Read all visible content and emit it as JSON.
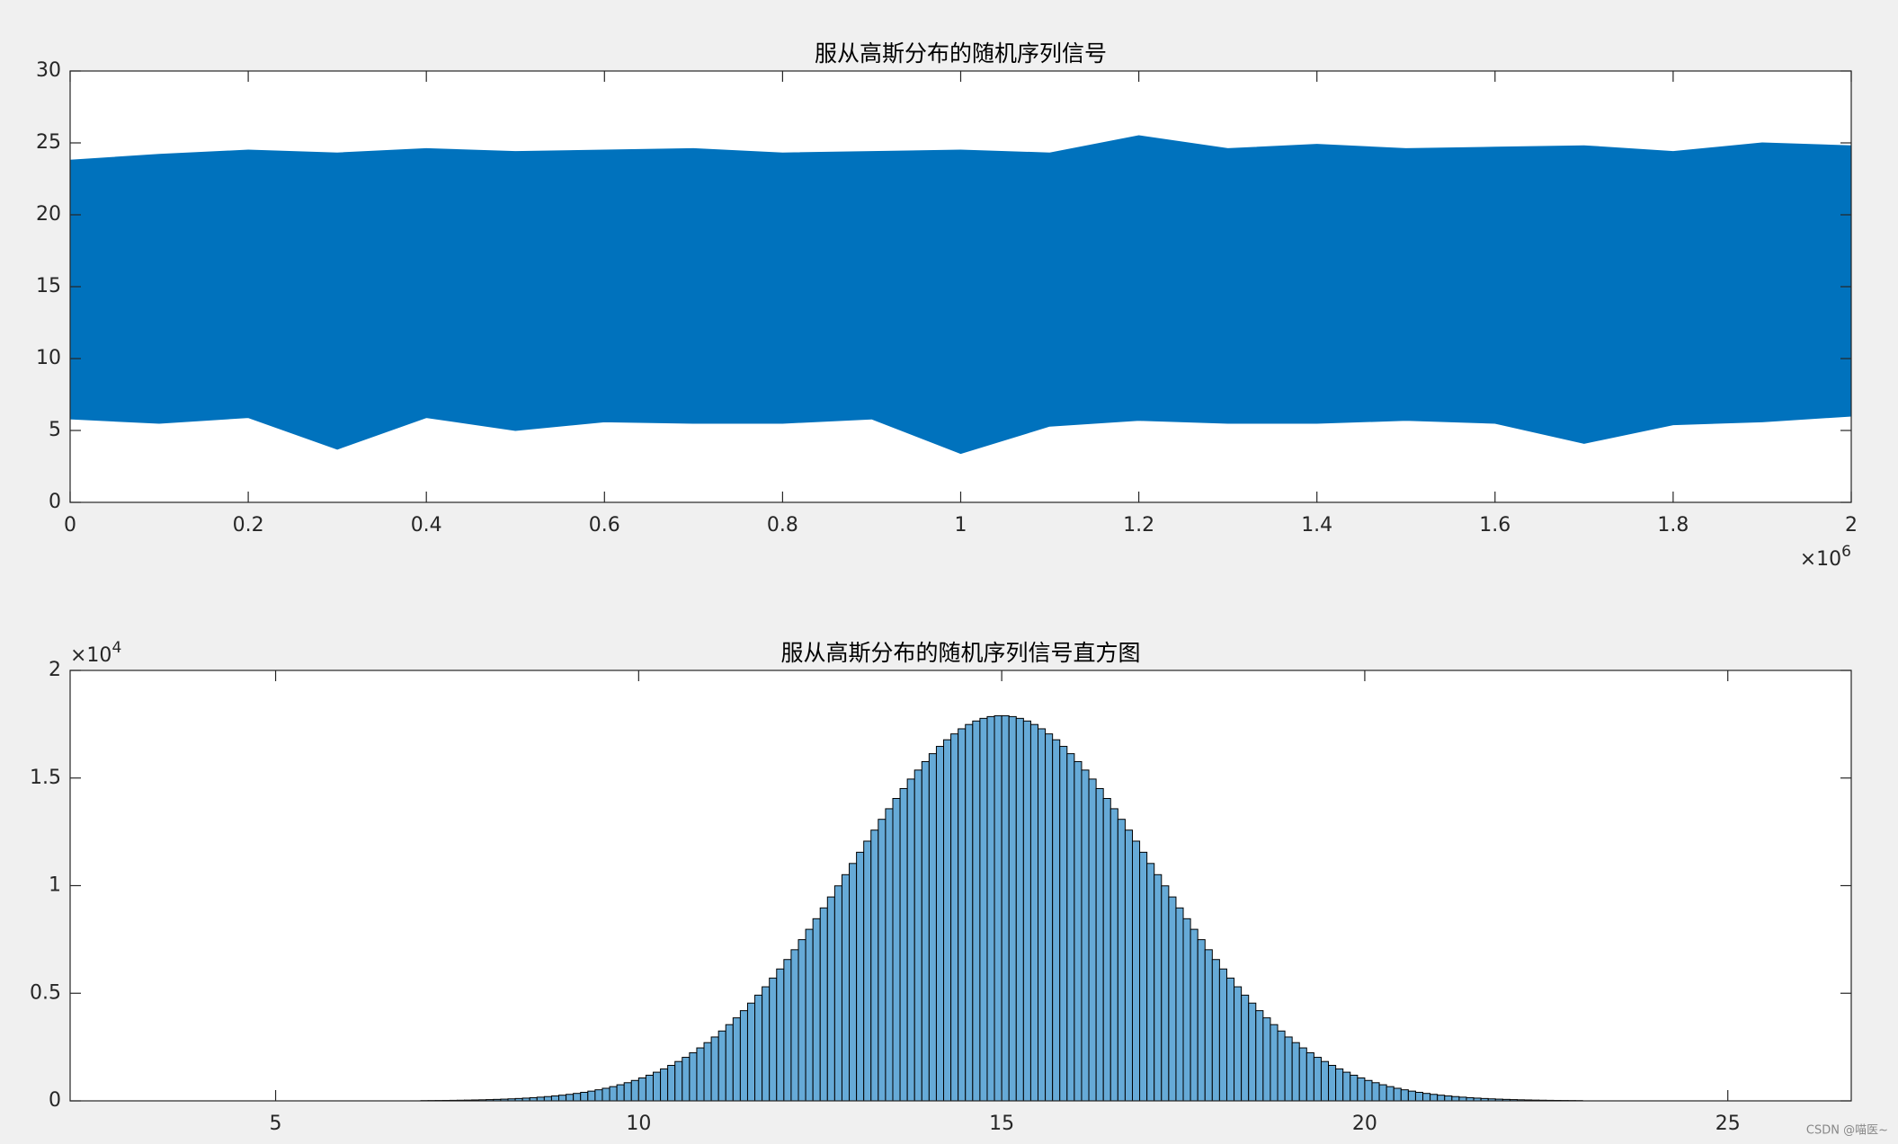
{
  "chart_data": [
    {
      "type": "band",
      "title": "服从高斯分布的随机序列信号",
      "color": "#0072BD",
      "x": [
        0,
        100000,
        200000,
        300000,
        400000,
        500000,
        600000,
        700000,
        800000,
        900000,
        1000000,
        1100000,
        1200000,
        1300000,
        1400000,
        1500000,
        1600000,
        1700000,
        1800000,
        1900000,
        2000000
      ],
      "upper": [
        23.8,
        24.2,
        24.5,
        24.3,
        24.6,
        24.4,
        24.5,
        24.6,
        24.3,
        24.4,
        24.5,
        24.3,
        25.5,
        24.6,
        24.9,
        24.6,
        24.7,
        24.8,
        24.4,
        25.0,
        24.8
      ],
      "lower": [
        5.8,
        5.5,
        5.9,
        3.7,
        5.9,
        5.0,
        5.6,
        5.5,
        5.5,
        5.8,
        3.4,
        5.3,
        5.7,
        5.5,
        5.5,
        5.7,
        5.5,
        4.1,
        5.4,
        5.6,
        6.0
      ],
      "xlim": [
        0,
        2000000
      ],
      "xticks": [
        0,
        {
          "value": 200000,
          "label": "0.2"
        },
        {
          "value": 400000,
          "label": "0.4"
        },
        {
          "value": 600000,
          "label": "0.6"
        },
        {
          "value": 800000,
          "label": "0.8"
        },
        {
          "value": 1000000,
          "label": "1"
        },
        {
          "value": 1200000,
          "label": "1.2"
        },
        {
          "value": 1400000,
          "label": "1.4"
        },
        {
          "value": 1600000,
          "label": "1.6"
        },
        {
          "value": 1800000,
          "label": "1.8"
        },
        {
          "value": 2000000,
          "label": "2"
        }
      ],
      "x_exponent": "×10",
      "x_exponent_power": "6",
      "ylim": [
        0,
        30
      ],
      "yticks": [
        0,
        5,
        10,
        15,
        20,
        25,
        30
      ]
    },
    {
      "type": "histogram",
      "title": "服从高斯分布的随机序列信号直方图",
      "color": "#66AAD7",
      "edge_color": "#000000",
      "bins": [
        7,
        7.1,
        7.2,
        7.3,
        7.4,
        7.5,
        7.6,
        7.7,
        7.8,
        7.9,
        8,
        8.1,
        8.2,
        8.3,
        8.4,
        8.5,
        8.6,
        8.7,
        8.8,
        8.9,
        9,
        9.1,
        9.2,
        9.3,
        9.4,
        9.5,
        9.6,
        9.7,
        9.8,
        9.9,
        10,
        10.1,
        10.2,
        10.3,
        10.4,
        10.5,
        10.6,
        10.7,
        10.8,
        10.9,
        11,
        11.1,
        11.2,
        11.3,
        11.4,
        11.5,
        11.6,
        11.7,
        11.8,
        11.9,
        12,
        12.1,
        12.2,
        12.3,
        12.4,
        12.5,
        12.6,
        12.7,
        12.8,
        12.9,
        13,
        13.1,
        13.2,
        13.3,
        13.4,
        13.5,
        13.6,
        13.7,
        13.8,
        13.9,
        14,
        14.1,
        14.2,
        14.3,
        14.4,
        14.5,
        14.6,
        14.7,
        14.8,
        14.9,
        15,
        15.1,
        15.2,
        15.3,
        15.4,
        15.5,
        15.6,
        15.7,
        15.8,
        15.9,
        16,
        16.1,
        16.2,
        16.3,
        16.4,
        16.5,
        16.6,
        16.7,
        16.8,
        16.9,
        17,
        17.1,
        17.2,
        17.3,
        17.4,
        17.5,
        17.6,
        17.7,
        17.8,
        17.9,
        18,
        18.1,
        18.2,
        18.3,
        18.4,
        18.5,
        18.6,
        18.7,
        18.8,
        18.9,
        19,
        19.1,
        19.2,
        19.3,
        19.4,
        19.5,
        19.6,
        19.7,
        19.8,
        19.9,
        20,
        20.1,
        20.2,
        20.3,
        20.4,
        20.5,
        20.6,
        20.7,
        20.8,
        20.9,
        21,
        21.1,
        21.2,
        21.3,
        21.4,
        21.5,
        21.6,
        21.7,
        21.8,
        21.9,
        22,
        22.1,
        22.2,
        22.3,
        22.4,
        22.5,
        22.6,
        22.7,
        22.8,
        22.9,
        23
      ],
      "values": [
        12,
        15,
        18,
        21,
        25,
        30,
        35,
        42,
        49,
        58,
        69,
        80,
        94,
        110,
        128,
        148,
        172,
        199,
        229,
        264,
        303,
        347,
        397,
        453,
        515,
        585,
        662,
        748,
        844,
        949,
        1065,
        1192,
        1332,
        1484,
        1649,
        1829,
        2023,
        2235,
        2461,
        2706,
        2967,
        3246,
        3542,
        3857,
        4191,
        4542,
        4912,
        5300,
        5706,
        6128,
        6567,
        7022,
        7490,
        7971,
        8463,
        8965,
        9474,
        9990,
        10510,
        11031,
        11551,
        12068,
        12580,
        13082,
        13573,
        14050,
        14511,
        14952,
        15370,
        15764,
        16132,
        16470,
        16777,
        17050,
        17287,
        17487,
        17649,
        17772,
        17854,
        17895,
        17895,
        17854,
        17772,
        17649,
        17487,
        17287,
        17050,
        16777,
        16470,
        16132,
        15764,
        15370,
        14952,
        14511,
        14050,
        13573,
        13082,
        12580,
        12068,
        11551,
        11031,
        10510,
        9990,
        9474,
        8965,
        8463,
        7971,
        7490,
        7022,
        6567,
        6128,
        5706,
        5300,
        4912,
        4542,
        4191,
        3857,
        3542,
        3246,
        2967,
        2706,
        2461,
        2235,
        2023,
        1829,
        1649,
        1484,
        1332,
        1192,
        1065,
        949,
        844,
        748,
        662,
        585,
        515,
        453,
        397,
        347,
        303,
        264,
        229,
        199,
        172,
        148,
        128,
        110,
        94,
        80,
        69,
        58,
        49,
        42,
        35,
        30,
        25,
        21,
        18,
        15,
        12
      ],
      "xlim": [
        2.17,
        26.7
      ],
      "xticks": [
        5,
        10,
        15,
        20,
        25
      ],
      "ylim": [
        0,
        20000
      ],
      "yticks": [
        0,
        {
          "value": 5000,
          "label": "0.5"
        },
        {
          "value": 10000,
          "label": "1"
        },
        {
          "value": 15000,
          "label": "1.5"
        },
        {
          "value": 20000,
          "label": "2"
        }
      ],
      "y_exponent": "×10",
      "y_exponent_power": "4"
    }
  ],
  "watermark": "CSDN @喵医~"
}
